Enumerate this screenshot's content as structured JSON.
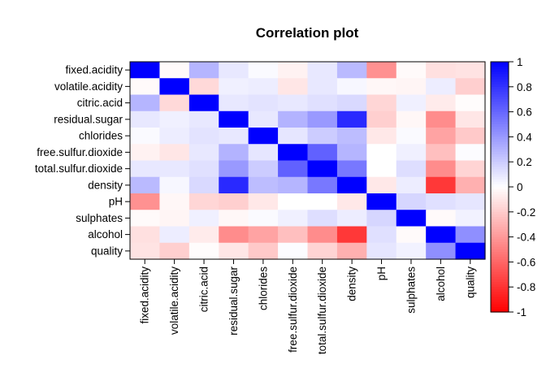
{
  "chart_data": {
    "type": "heatmap",
    "title": "Correlation plot",
    "xlabel": "",
    "ylabel": "",
    "variables": [
      "fixed.acidity",
      "volatile.acidity",
      "citric.acid",
      "residual.sugar",
      "chlorides",
      "free.sulfur.dioxide",
      "total.sulfur.dioxide",
      "density",
      "pH",
      "sulphates",
      "alcohol",
      "quality"
    ],
    "matrix": [
      [
        1.0,
        -0.02,
        0.29,
        0.09,
        0.02,
        -0.05,
        0.09,
        0.27,
        -0.43,
        -0.02,
        -0.12,
        -0.11
      ],
      [
        -0.02,
        1.0,
        -0.15,
        0.06,
        0.07,
        -0.1,
        0.09,
        0.03,
        -0.03,
        -0.04,
        0.07,
        -0.19
      ],
      [
        0.29,
        -0.15,
        1.0,
        0.09,
        0.11,
        0.09,
        0.12,
        0.15,
        -0.16,
        0.06,
        -0.08,
        -0.01
      ],
      [
        0.09,
        0.06,
        0.09,
        1.0,
        0.09,
        0.3,
        0.4,
        0.84,
        -0.19,
        -0.03,
        -0.45,
        -0.1
      ],
      [
        0.02,
        0.07,
        0.11,
        0.09,
        1.0,
        0.1,
        0.2,
        0.26,
        -0.09,
        0.02,
        -0.36,
        -0.21
      ],
      [
        -0.05,
        -0.1,
        0.09,
        0.3,
        0.1,
        1.0,
        0.62,
        0.29,
        0.0,
        0.06,
        -0.25,
        0.01
      ],
      [
        0.09,
        0.09,
        0.12,
        0.4,
        0.2,
        0.62,
        1.0,
        0.53,
        0.0,
        0.13,
        -0.45,
        -0.17
      ],
      [
        0.27,
        0.03,
        0.15,
        0.84,
        0.26,
        0.29,
        0.53,
        1.0,
        -0.09,
        0.07,
        -0.78,
        -0.31
      ],
      [
        -0.43,
        -0.03,
        -0.16,
        -0.19,
        -0.09,
        0.0,
        0.0,
        -0.09,
        1.0,
        0.16,
        0.12,
        0.1
      ],
      [
        -0.02,
        -0.04,
        0.06,
        -0.03,
        0.02,
        0.06,
        0.13,
        0.07,
        0.16,
        1.0,
        -0.02,
        0.05
      ],
      [
        -0.12,
        0.07,
        -0.08,
        -0.45,
        -0.36,
        -0.25,
        -0.45,
        -0.78,
        0.12,
        -0.02,
        1.0,
        0.44
      ],
      [
        -0.11,
        -0.19,
        -0.01,
        -0.1,
        -0.21,
        0.01,
        -0.17,
        -0.31,
        0.1,
        0.05,
        0.44,
        1.0
      ]
    ],
    "color_scale": {
      "min": -1,
      "max": 1,
      "low_color": "#FF0000",
      "mid_color": "#FFFFFF",
      "high_color": "#0000FF",
      "ticks": [
        "-1",
        "-0.8",
        "-0.6",
        "-0.4",
        "-0.2",
        "0",
        "0.2",
        "0.4",
        "0.6",
        "0.8",
        "1"
      ]
    },
    "legend": "right",
    "grid": false
  }
}
